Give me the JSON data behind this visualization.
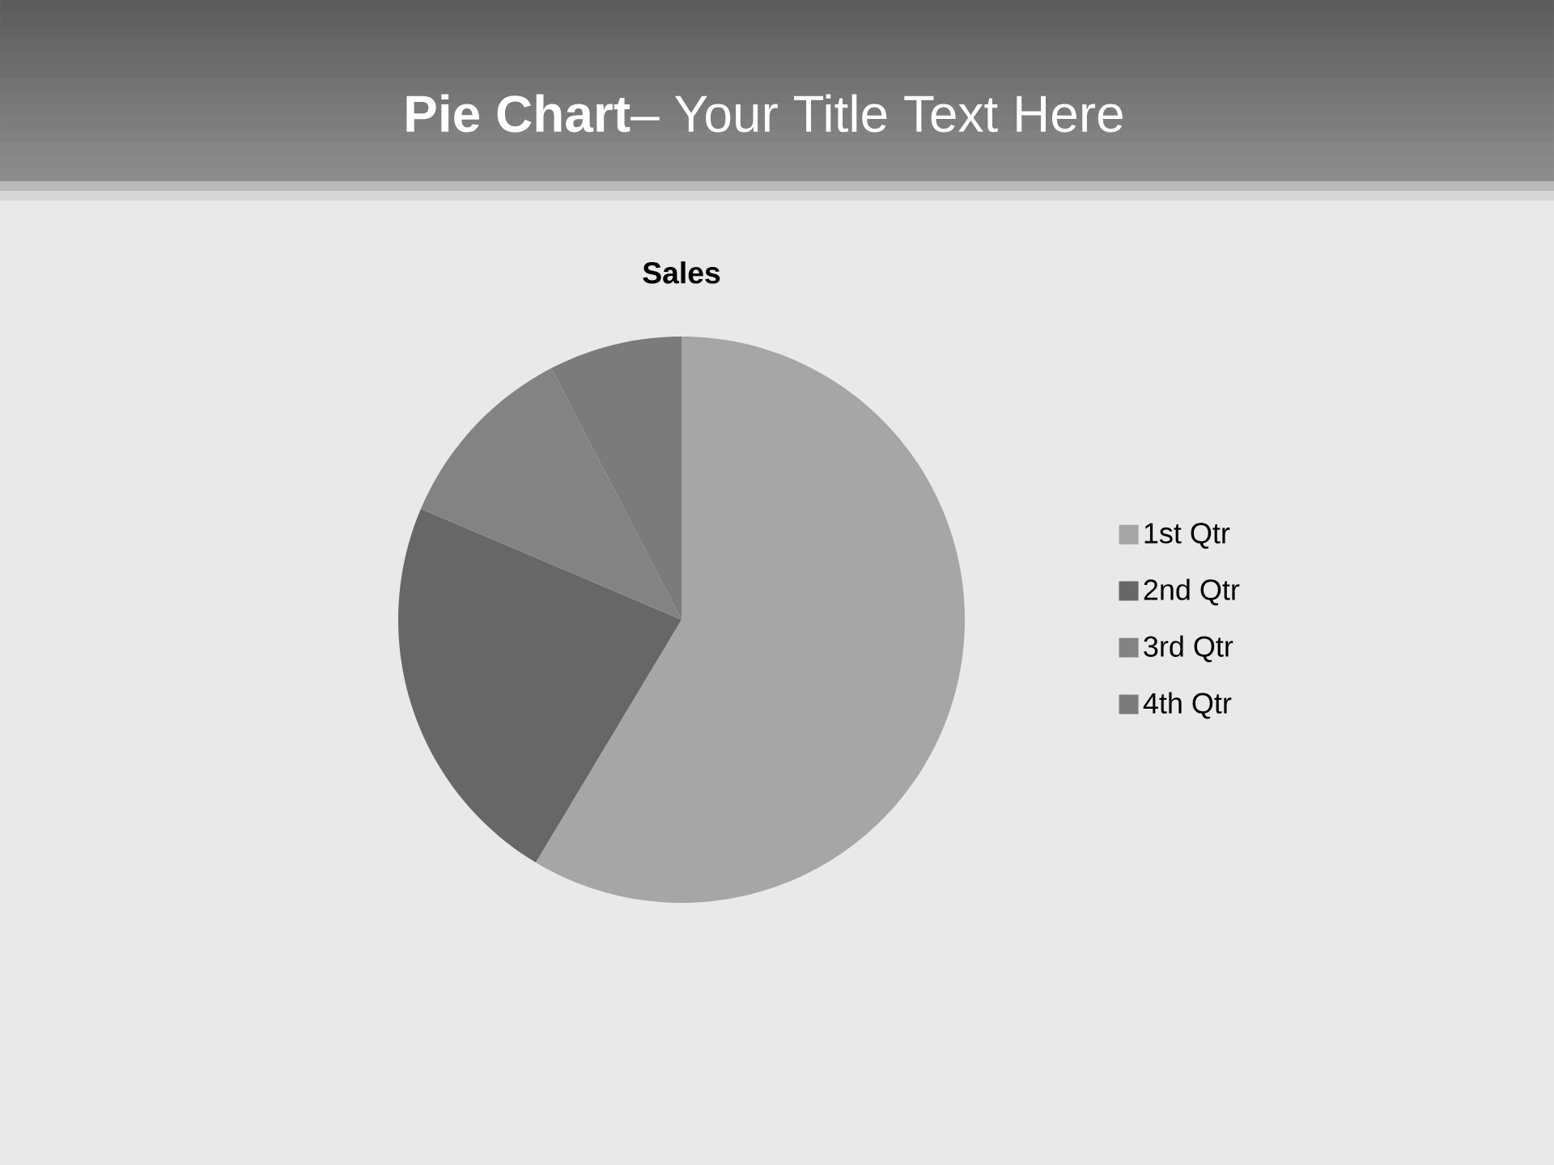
{
  "chart_data": {
    "type": "pie",
    "title": "**Pie Chart**– Your Title Text Here",
    "subtitle": "Sales",
    "categories": [
      "1st Qtr",
      "2nd Qtr",
      "3rd Qtr",
      "4th Qtr"
    ],
    "values": [
      58.6,
      22.8,
      11.0,
      7.6
    ],
    "colors": [
      "#a6a6a6",
      "#676767",
      "#838383",
      "#7b7b7b"
    ],
    "legend": "right"
  }
}
